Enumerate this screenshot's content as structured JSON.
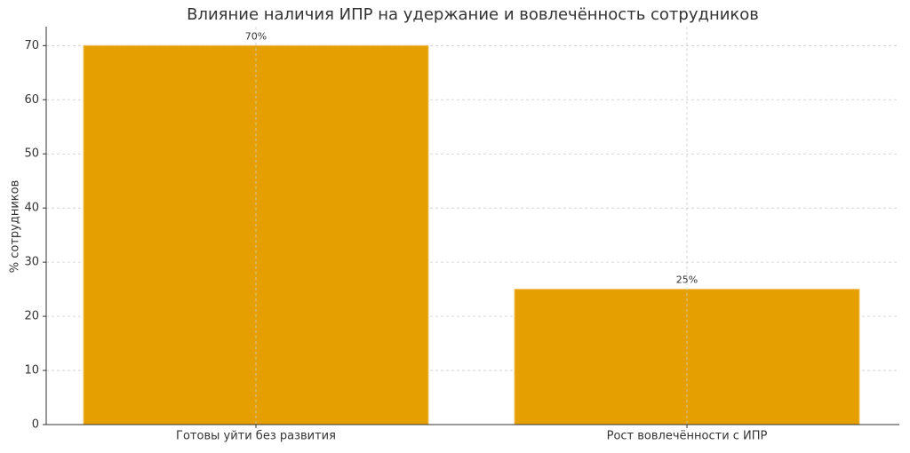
{
  "chart_data": {
    "type": "bar",
    "title": "Влияние наличия ИПР на удержание и вовлечённость сотрудников",
    "y_label": "% сотрудников",
    "categories": [
      "Готовы уйти без развития",
      "Рост вовлечённости с ИПР"
    ],
    "values": [
      70,
      25
    ],
    "value_labels": [
      "70%",
      "25%"
    ],
    "color": "#e69f00",
    "ylim": [
      0,
      73.5
    ],
    "yticks": [
      0,
      10,
      20,
      30,
      40,
      50,
      60,
      70
    ],
    "grid": true
  }
}
